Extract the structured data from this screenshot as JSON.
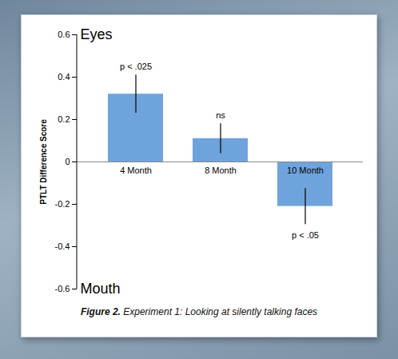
{
  "chart_data": {
    "type": "bar",
    "categories": [
      "4 Month",
      "8 Month",
      "10 Month"
    ],
    "values": [
      0.32,
      0.11,
      -0.21
    ],
    "errors": [
      0.09,
      0.07,
      0.085
    ],
    "significance": [
      "p < .025",
      "ns",
      "p < .05"
    ],
    "y_label": "PTLT Difference Score",
    "top_label": "Eyes",
    "bottom_label": "Mouth",
    "caption": "Figure 2. Experiment 1: Looking at silently talking faces",
    "color": "#6fa3dc",
    "ylim": [
      -0.6,
      0.6
    ],
    "yticks": [
      -0.6,
      -0.4,
      -0.2,
      0,
      0.2,
      0.4,
      0.6
    ],
    "grid": false
  }
}
